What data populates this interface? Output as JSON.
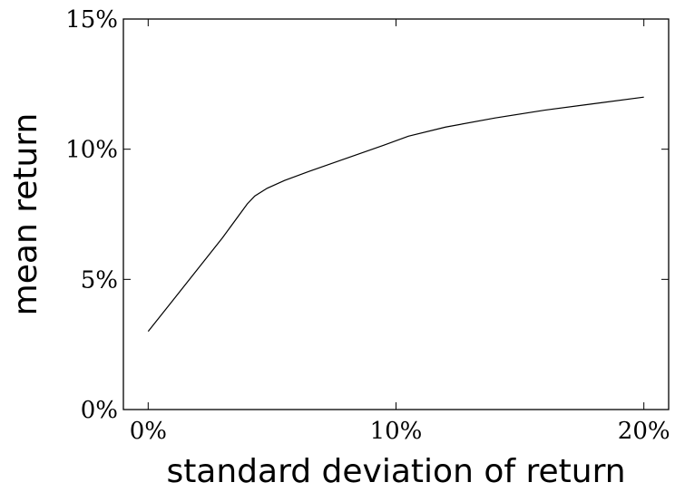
{
  "chart_data": {
    "type": "line",
    "title": "",
    "xlabel": "standard deviation of return",
    "ylabel": "mean return",
    "xlim": [
      -1,
      21
    ],
    "ylim": [
      0,
      15
    ],
    "grid": false,
    "x_ticks": [
      0,
      10,
      20
    ],
    "x_tick_labels": [
      "0%",
      "10%",
      "20%"
    ],
    "y_ticks": [
      0,
      5,
      10,
      15
    ],
    "y_tick_labels": [
      "0%",
      "5%",
      "10%",
      "15%"
    ],
    "series": [
      {
        "x": [
          0,
          1,
          2,
          3,
          4,
          4.3,
          4.8,
          5.5,
          6.5,
          8,
          9.5,
          10.5,
          12,
          14,
          16,
          18,
          20
        ],
        "y": [
          3.0,
          4.2,
          5.4,
          6.6,
          7.9,
          8.2,
          8.5,
          8.8,
          9.15,
          9.65,
          10.15,
          10.5,
          10.85,
          11.2,
          11.5,
          11.75,
          12.0
        ]
      }
    ]
  }
}
